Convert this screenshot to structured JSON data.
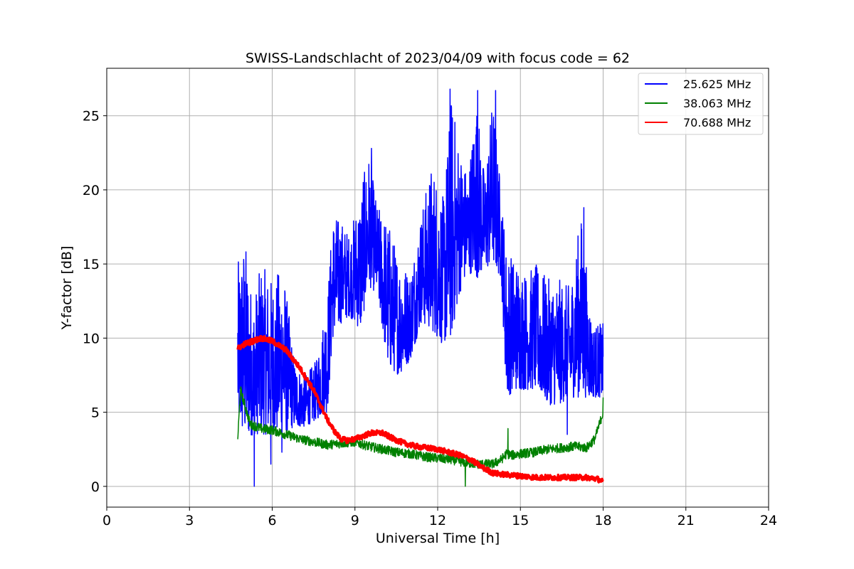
{
  "chart_data": {
    "type": "line",
    "title": "SWISS-Landschlacht of 2023/04/09 with focus code = 62",
    "xlabel": "Universal Time [h]",
    "ylabel": "Y-factor [dB]",
    "xlim": [
      0,
      24
    ],
    "ylim": [
      -1.4,
      28.2
    ],
    "xticks": [
      0,
      3,
      6,
      9,
      12,
      15,
      18,
      21,
      24
    ],
    "yticks": [
      0,
      5,
      10,
      15,
      20,
      25
    ],
    "grid": true,
    "legend_position": "top-right",
    "series": [
      {
        "name": "25.625 MHz",
        "color": "#0000ff",
        "style": "noisy",
        "x": [
          4.75,
          5.0,
          5.3,
          5.6,
          6.0,
          6.4,
          6.8,
          7.2,
          7.6,
          8.0,
          8.2,
          8.5,
          8.8,
          9.2,
          9.5,
          9.8,
          10.2,
          10.6,
          11.0,
          11.4,
          11.8,
          12.2,
          12.5,
          12.8,
          13.1,
          13.4,
          13.7,
          14.0,
          14.3,
          14.5,
          14.8,
          15.2,
          15.6,
          16.0,
          16.4,
          16.8,
          17.2,
          17.6,
          18.0
        ],
        "low": [
          4.0,
          3.0,
          3.5,
          3.5,
          3.5,
          3.5,
          4.0,
          4.0,
          4.5,
          5.0,
          10.0,
          11.0,
          11.5,
          10.5,
          13.5,
          13.0,
          8.0,
          7.5,
          8.5,
          11.0,
          10.5,
          9.5,
          10.0,
          13.0,
          14.5,
          14.0,
          14.5,
          15.0,
          14.0,
          6.0,
          6.5,
          6.5,
          6.5,
          5.5,
          5.5,
          6.0,
          6.0,
          6.0,
          6.0
        ],
        "high": [
          15.0,
          17.0,
          12.5,
          15.0,
          14.0,
          15.0,
          8.5,
          7.5,
          8.5,
          13.0,
          18.5,
          18.0,
          17.0,
          20.0,
          22.5,
          19.0,
          18.0,
          15.5,
          14.5,
          18.5,
          22.0,
          19.5,
          26.5,
          23.0,
          21.0,
          26.5,
          21.0,
          26.5,
          20.0,
          16.0,
          15.5,
          14.5,
          15.0,
          14.0,
          14.0,
          13.5,
          18.5,
          11.0,
          11.0
        ],
        "spikes": [
          [
            5.35,
            0.0
          ],
          [
            5.95,
            1.5
          ],
          [
            6.35,
            2.3
          ],
          [
            9.3,
            20.5
          ],
          [
            9.6,
            22.8
          ],
          [
            12.45,
            26.8
          ],
          [
            13.45,
            26.7
          ],
          [
            14.1,
            26.7
          ],
          [
            16.7,
            3.5
          ],
          [
            17.3,
            18.8
          ]
        ]
      },
      {
        "name": "38.063 MHz",
        "color": "#008000",
        "style": "thin",
        "x": [
          4.75,
          4.85,
          5.0,
          5.2,
          5.6,
          6.0,
          6.5,
          7.0,
          7.5,
          8.0,
          8.5,
          9.0,
          9.5,
          10.0,
          10.5,
          11.0,
          11.5,
          12.0,
          12.5,
          13.0,
          13.5,
          14.0,
          14.3,
          14.5,
          14.7,
          15.0,
          15.5,
          16.0,
          16.5,
          17.0,
          17.4,
          17.7,
          18.0
        ],
        "y": [
          3.2,
          6.5,
          5.5,
          4.2,
          3.9,
          3.8,
          3.5,
          3.2,
          3.0,
          2.8,
          2.9,
          3.0,
          2.7,
          2.5,
          2.3,
          2.2,
          2.0,
          1.9,
          1.8,
          1.6,
          1.5,
          1.5,
          1.8,
          2.2,
          2.1,
          2.2,
          2.3,
          2.5,
          2.6,
          2.7,
          2.6,
          3.2,
          5.0
        ],
        "spikes": [
          [
            13.0,
            0.0
          ],
          [
            14.55,
            3.9
          ],
          [
            18.0,
            6.0
          ]
        ]
      },
      {
        "name": "70.688 MHz",
        "color": "#ff0000",
        "style": "thick",
        "x": [
          4.75,
          5.0,
          5.3,
          5.6,
          6.0,
          6.5,
          7.0,
          7.5,
          8.0,
          8.3,
          8.5,
          8.7,
          9.0,
          9.3,
          9.6,
          10.0,
          10.4,
          10.8,
          11.2,
          11.6,
          12.0,
          12.4,
          12.8,
          13.2,
          13.6,
          14.0,
          14.4,
          15.0,
          15.6,
          16.2,
          16.8,
          17.4,
          17.8,
          18.0
        ],
        "y": [
          9.3,
          9.6,
          9.8,
          10.0,
          9.8,
          9.2,
          8.0,
          6.5,
          4.5,
          3.6,
          3.2,
          3.1,
          3.2,
          3.4,
          3.6,
          3.6,
          3.2,
          2.9,
          2.7,
          2.6,
          2.5,
          2.3,
          2.1,
          1.8,
          1.3,
          0.9,
          0.8,
          0.7,
          0.6,
          0.6,
          0.6,
          0.6,
          0.5,
          0.3
        ]
      }
    ]
  }
}
